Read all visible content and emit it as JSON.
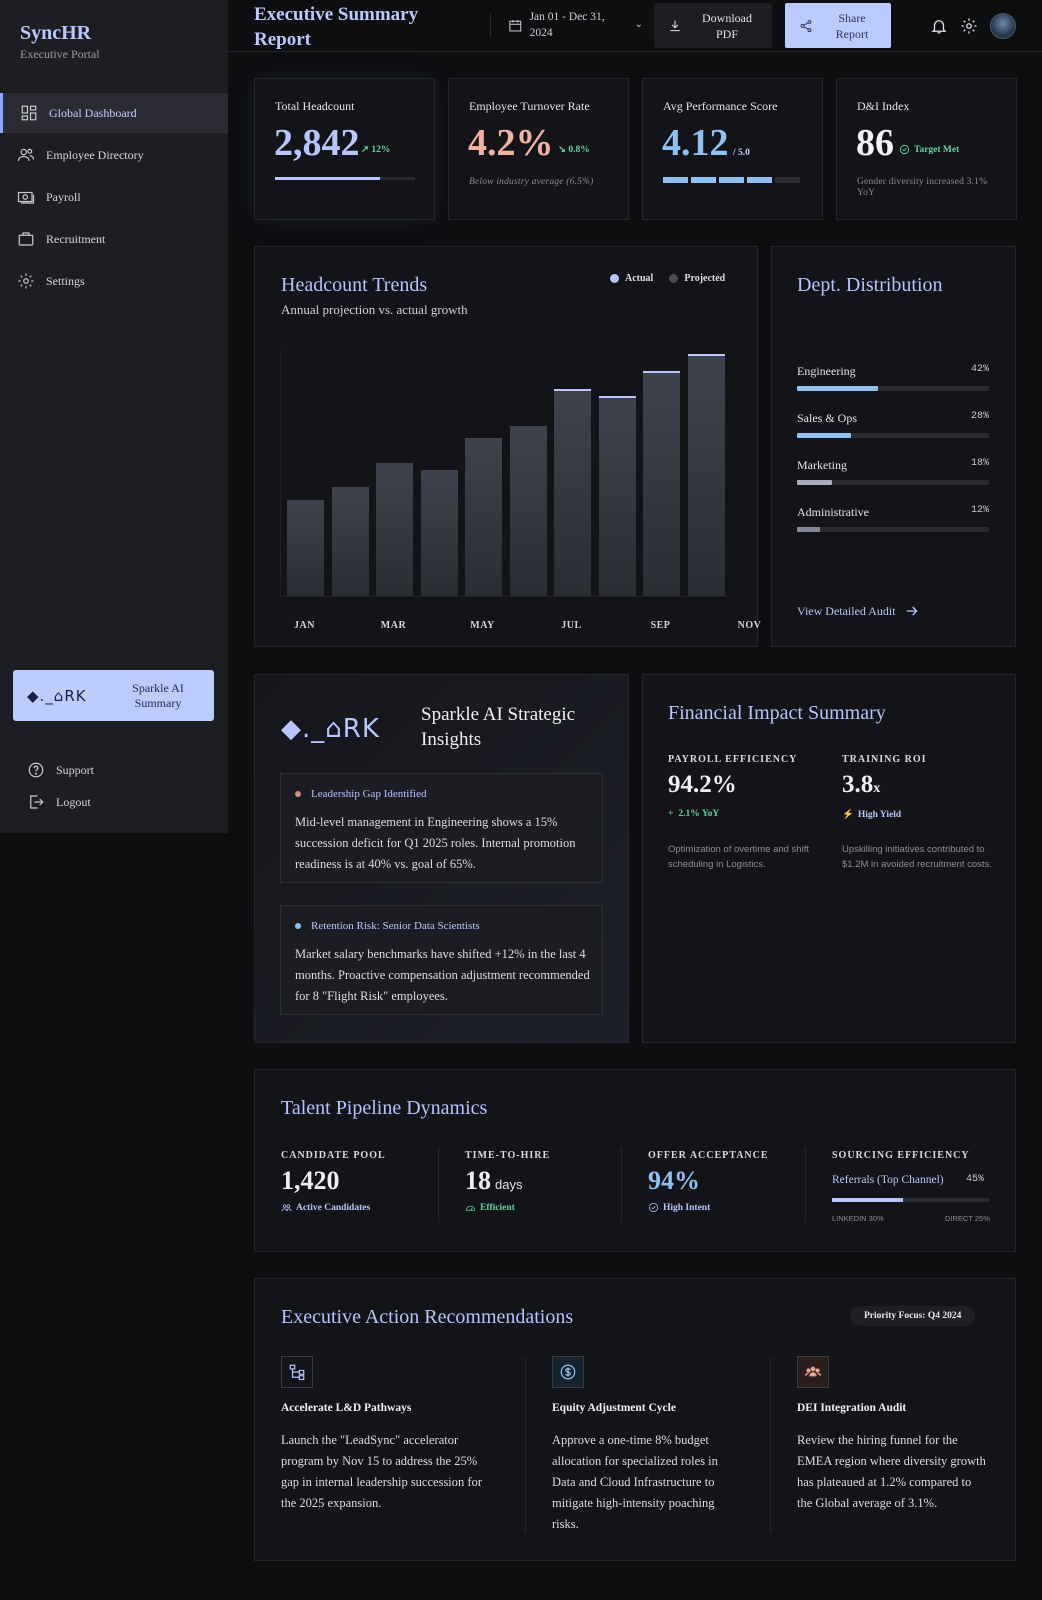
{
  "app": {
    "name": "SyncHR",
    "subtitle": "Executive Portal"
  },
  "sidebar": {
    "items": [
      {
        "label": "Global Dashboard",
        "icon": "dashboard-icon",
        "active": true
      },
      {
        "label": "Employee Directory",
        "icon": "people-icon"
      },
      {
        "label": "Payroll",
        "icon": "payroll-icon"
      },
      {
        "label": "Recruitment",
        "icon": "briefcase-icon"
      },
      {
        "label": "Settings",
        "icon": "gear-icon"
      }
    ],
    "sparkle": {
      "logo": "◆._⌂RK",
      "label": "Sparkle AI Summary"
    },
    "footer": [
      {
        "label": "Support",
        "icon": "help-icon"
      },
      {
        "label": "Logout",
        "icon": "logout-icon"
      }
    ]
  },
  "header": {
    "title": "Executive Summary Report",
    "date_range": "Jan 01 - Dec 31, 2024",
    "download_label": "Download PDF",
    "share_label": "Share Report"
  },
  "kpis": {
    "headcount": {
      "label": "Total Headcount",
      "value": "2,842",
      "delta": "12%",
      "progress": 0.75
    },
    "turnover": {
      "label": "Employee Turnover Rate",
      "value": "4.2%",
      "delta": "0.8%",
      "note": "Below industry average (6.5%)"
    },
    "performance": {
      "label": "Avg Performance Score",
      "value": "4.12",
      "scale": "/ 5.0",
      "segments_filled": 4,
      "segments_total": 5
    },
    "dni": {
      "label": "D&I Index",
      "value": "86",
      "tag": "Target Met",
      "note": "Gender diversity increased 3.1% YoY"
    }
  },
  "trends": {
    "title": "Headcount Trends",
    "subtitle": "Annual projection vs. actual growth",
    "legend": {
      "actual": "Actual",
      "projected": "Projected"
    },
    "x_labels": [
      "JAN",
      "MAR",
      "MAY",
      "JUL",
      "SEP",
      "NOV"
    ]
  },
  "chart_data": {
    "type": "bar",
    "categories": [
      "JAN",
      "",
      "MAR",
      "",
      "MAY",
      "",
      "JUL",
      "",
      "SEP",
      "",
      "NOV"
    ],
    "values": [
      39,
      44,
      54,
      51,
      64,
      69,
      84,
      81,
      91,
      98,
      0
    ],
    "highlighted": [
      false,
      false,
      false,
      false,
      false,
      false,
      true,
      true,
      true,
      true,
      false
    ],
    "ylim": [
      0,
      100
    ]
  },
  "dept": {
    "title": "Dept. Distribution",
    "rows": [
      {
        "name": "Engineering",
        "pct": "42%",
        "value": 0.42,
        "color": "#8fc1f5"
      },
      {
        "name": "Sales & Ops",
        "pct": "28%",
        "value": 0.28,
        "color": "#8fc1f5"
      },
      {
        "name": "Marketing",
        "pct": "18%",
        "value": 0.18,
        "color": "#a9adbc"
      },
      {
        "name": "Administrative",
        "pct": "12%",
        "value": 0.12,
        "color": "#868994"
      }
    ],
    "link": "View Detailed Audit"
  },
  "insights": {
    "logo": "◆._⌂RK",
    "title": "Sparkle AI Strategic Insights",
    "items": [
      {
        "heading": "Leadership Gap Identified",
        "color": "#c89287",
        "body": "Mid-level management in Engineering shows a 15% succession deficit for Q1 2025 roles. Internal promotion readiness is at 40% vs. goal of 65%."
      },
      {
        "heading": "Retention Risk: Senior Data Scientists",
        "color": "#8fc1f5",
        "body": "Market salary benchmarks have shifted +12% in the last 4 months. Proactive compensation adjustment recommended for 8 \"Flight Risk\" employees."
      }
    ]
  },
  "financial": {
    "title": "Financial Impact Summary",
    "payroll": {
      "label": "PAYROLL EFFICIENCY",
      "value": "94.2%",
      "tag": "2.1% YoY",
      "desc": "Optimization of overtime and shift scheduling in Logistics."
    },
    "training": {
      "label": "TRAINING ROI",
      "value": "3.8",
      "unit": "x",
      "tag": "High Yield",
      "desc": "Upskilling initiatives contributed to $1.2M in avoided recruitment costs."
    }
  },
  "pipeline": {
    "title": "Talent Pipeline Dynamics",
    "pool": {
      "label": "CANDIDATE POOL",
      "value": "1,420",
      "tag": "Active Candidates"
    },
    "tth": {
      "label": "TIME-TO-HIRE",
      "value": "18",
      "unit": "days",
      "tag": "Efficient"
    },
    "offer": {
      "label": "OFFER ACCEPTANCE",
      "value": "94%",
      "tag": "High Intent"
    },
    "sourcing": {
      "label": "SOURCING EFFICIENCY",
      "channel": "Referrals (Top Channel)",
      "pct": "45%",
      "value": 0.45,
      "left_label": "LINKEDIN 30%",
      "right_label": "DIRECT 25%"
    }
  },
  "recommendations": {
    "title": "Executive Action Recommendations",
    "badge": "Priority Focus: Q4 2024",
    "items": [
      {
        "icon": "hierarchy-icon",
        "color": "#b7c6ff",
        "title": "Accelerate L&D Pathways",
        "body": "Launch the \"LeadSync\" accelerator program by Nov 15 to address the 25% gap in internal leadership succession for the 2025 expansion."
      },
      {
        "icon": "dollar-icon",
        "color": "#8fc1f5",
        "title": "Equity Adjustment Cycle",
        "body": "Approve a one-time 8% budget allocation for specialized roles in Data and Cloud Infrastructure to mitigate high-intensity poaching risks."
      },
      {
        "icon": "group-icon",
        "color": "#e8a494",
        "title": "DEI Integration Audit",
        "body": "Review the hiring funnel for the EMEA region where diversity growth has plateaued at 1.2% compared to the Global average of 3.1%."
      }
    ]
  }
}
